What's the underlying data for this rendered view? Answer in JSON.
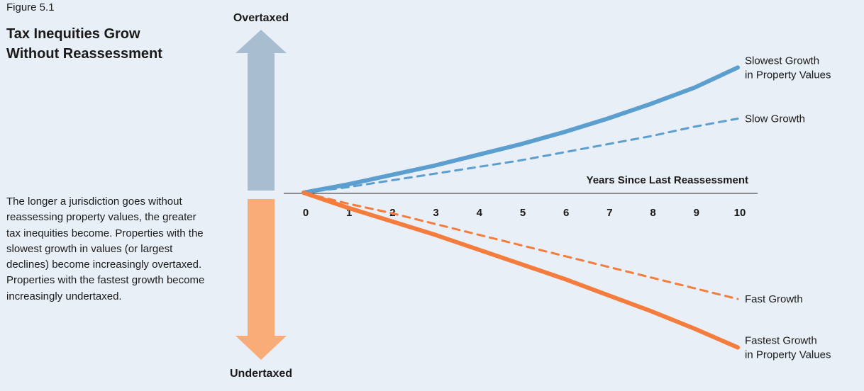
{
  "figure_label": "Figure 5.1",
  "title_lines": [
    "Tax Inequities Grow",
    "Without Reassessment"
  ],
  "description": "The longer a jurisdiction goes without reassessing property values, the greater tax inequities become. Properties with the slowest growth in values (or largest declines) become increasingly overtaxed. Properties with the fastest growth become increasingly undertaxed.",
  "arrows": {
    "up_label": "Overtaxed",
    "down_label": "Undertaxed",
    "up_color": "#a9bdd1",
    "down_color": "#f9ab78"
  },
  "chart_data": {
    "type": "line",
    "xlabel": "Years Since Last Reassessment",
    "ylabel": "",
    "x_ticks": [
      "0",
      "1",
      "2",
      "3",
      "4",
      "5",
      "6",
      "7",
      "8",
      "9",
      "10"
    ],
    "xlim": [
      0,
      10
    ],
    "ylim": [
      -10,
      10
    ],
    "grid": false,
    "legend": "line-end labels",
    "series": [
      {
        "name": "Slowest Growth in Property Values",
        "label_lines": [
          "Slowest Growth",
          "in Property Values"
        ],
        "color": "#5c9fcf",
        "style": "solid",
        "x": [
          0,
          1,
          2,
          3,
          4,
          5,
          6,
          7,
          8,
          9,
          10
        ],
        "values": [
          0,
          0.6,
          1.3,
          2.0,
          2.8,
          3.6,
          4.5,
          5.5,
          6.6,
          7.8,
          9.3
        ]
      },
      {
        "name": "Slow Growth",
        "label_lines": [
          "Slow Growth"
        ],
        "color": "#5c9fcf",
        "style": "dashed",
        "x": [
          0,
          1,
          2,
          3,
          4,
          5,
          6,
          7,
          8,
          9,
          10
        ],
        "values": [
          0,
          0.4,
          0.9,
          1.4,
          1.9,
          2.4,
          3.0,
          3.6,
          4.2,
          4.9,
          5.5
        ]
      },
      {
        "name": "Fast Growth",
        "label_lines": [
          "Fast Growth"
        ],
        "color": "#f47c3c",
        "style": "dashed",
        "x": [
          0,
          1,
          2,
          3,
          4,
          5,
          6,
          7,
          8,
          9,
          10
        ],
        "values": [
          0,
          -0.8,
          -1.5,
          -2.3,
          -3.1,
          -3.9,
          -4.7,
          -5.5,
          -6.3,
          -7.1,
          -7.9
        ]
      },
      {
        "name": "Fastest Growth in Property Values",
        "label_lines": [
          "Fastest Growth",
          "in Property Values"
        ],
        "color": "#f47c3c",
        "style": "solid",
        "x": [
          0,
          1,
          2,
          3,
          4,
          5,
          6,
          7,
          8,
          9,
          10
        ],
        "values": [
          0,
          -1.1,
          -2.1,
          -3.1,
          -4.2,
          -5.3,
          -6.4,
          -7.6,
          -8.8,
          -10.1,
          -11.5
        ]
      }
    ]
  }
}
